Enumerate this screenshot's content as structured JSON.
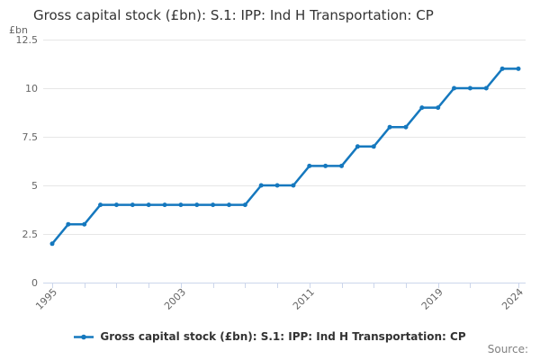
{
  "title": "Gross capital stock (£bn): S.1: IPP: Ind H Transportation: CP",
  "y_axis_unit": "£bn",
  "legend": {
    "label": "Gross capital stock (£bn): S.1: IPP: Ind H Transportation: CP"
  },
  "source_label": "Source:",
  "colors": {
    "series_blue": "#1578be",
    "grid_line": "#e6e6e6",
    "axis_line": "#ccd6eb",
    "tick_label_text": "#666666",
    "title_text": "#333333",
    "legend_text": "#333333",
    "source_text": "#808080"
  },
  "chart_data": {
    "type": "line",
    "title": "Gross capital stock (£bn): S.1: IPP: Ind H Transportation: CP",
    "ylabel": "£bn",
    "xlabel": "",
    "x": [
      1995,
      1996,
      1997,
      1998,
      1999,
      2000,
      2001,
      2002,
      2003,
      2004,
      2005,
      2006,
      2007,
      2008,
      2009,
      2010,
      2011,
      2012,
      2013,
      2014,
      2015,
      2016,
      2017,
      2018,
      2019,
      2020,
      2021,
      2022,
      2023,
      2024
    ],
    "series": [
      {
        "name": "Gross capital stock (£bn): S.1: IPP: Ind H Transportation: CP",
        "color": "#1578be",
        "values": [
          2,
          3,
          3,
          4,
          4,
          4,
          4,
          4,
          4,
          4,
          4,
          4,
          4,
          5,
          5,
          5,
          6,
          6,
          6,
          7,
          7,
          8,
          8,
          9,
          9,
          10,
          10,
          10,
          11,
          11
        ]
      }
    ],
    "ylim": [
      0,
      12.5
    ],
    "yticks": [
      0,
      2.5,
      5,
      7.5,
      10,
      12.5
    ],
    "xticks": [
      1995,
      1997,
      1999,
      2001,
      2003,
      2005,
      2007,
      2009,
      2011,
      2013,
      2015,
      2017,
      2019,
      2021,
      2024
    ],
    "xtick_labels": [
      "1995",
      "2003",
      "2011",
      "2019",
      "2024"
    ],
    "grid": true,
    "marker": "circle",
    "legend_position": "bottom-center"
  }
}
